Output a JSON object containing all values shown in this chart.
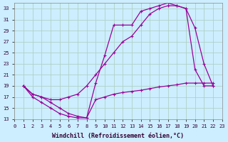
{
  "xlabel": "Windchill (Refroidissement éolien,°C)",
  "ylabel": "",
  "background_color": "#cceeff",
  "grid_color": "#aaccbb",
  "line_color": "#990099",
  "xlim": [
    0,
    23
  ],
  "ylim": [
    13,
    34
  ],
  "xticks": [
    0,
    1,
    2,
    3,
    4,
    5,
    6,
    7,
    8,
    9,
    10,
    11,
    12,
    13,
    14,
    15,
    16,
    17,
    18,
    19,
    20,
    21,
    22,
    23
  ],
  "yticks": [
    13,
    15,
    17,
    19,
    21,
    23,
    25,
    27,
    29,
    31,
    33
  ],
  "line1_x": [
    1,
    2,
    3,
    4,
    5,
    6,
    7,
    8,
    9,
    10,
    11,
    12,
    13,
    14,
    15,
    16,
    17,
    18,
    19,
    20,
    21,
    22
  ],
  "line1_y": [
    19,
    17.5,
    17,
    16.5,
    16.5,
    17,
    17.5,
    19,
    21,
    23,
    25,
    27,
    28,
    30,
    32,
    33,
    33.5,
    33.5,
    33,
    29.5,
    23,
    19
  ],
  "line2_x": [
    1,
    2,
    3,
    4,
    5,
    6,
    7,
    8,
    9,
    10,
    11,
    12,
    13,
    14,
    15,
    16,
    17,
    18,
    19,
    20,
    21,
    22
  ],
  "line2_y": [
    19,
    17.5,
    17,
    16,
    15,
    14,
    13.5,
    13.2,
    19.5,
    24.5,
    30,
    30,
    30,
    32.5,
    33,
    33.5,
    34,
    33.5,
    33,
    22,
    19,
    19
  ],
  "line3_x": [
    1,
    2,
    3,
    4,
    5,
    6,
    7,
    8,
    9,
    10,
    11,
    12,
    13,
    14,
    15,
    16,
    17,
    18,
    19,
    20,
    21,
    22
  ],
  "line3_y": [
    19,
    17,
    16,
    15,
    14,
    13.5,
    13.2,
    13.2,
    16.5,
    17,
    17.5,
    17.8,
    18,
    18.2,
    18.5,
    18.8,
    19,
    19.2,
    19.5,
    19.5,
    19.5,
    19.5
  ],
  "marker": "+",
  "markersize": 3,
  "linewidth": 0.9,
  "tick_fontsize": 5.0,
  "label_fontsize": 6.0
}
